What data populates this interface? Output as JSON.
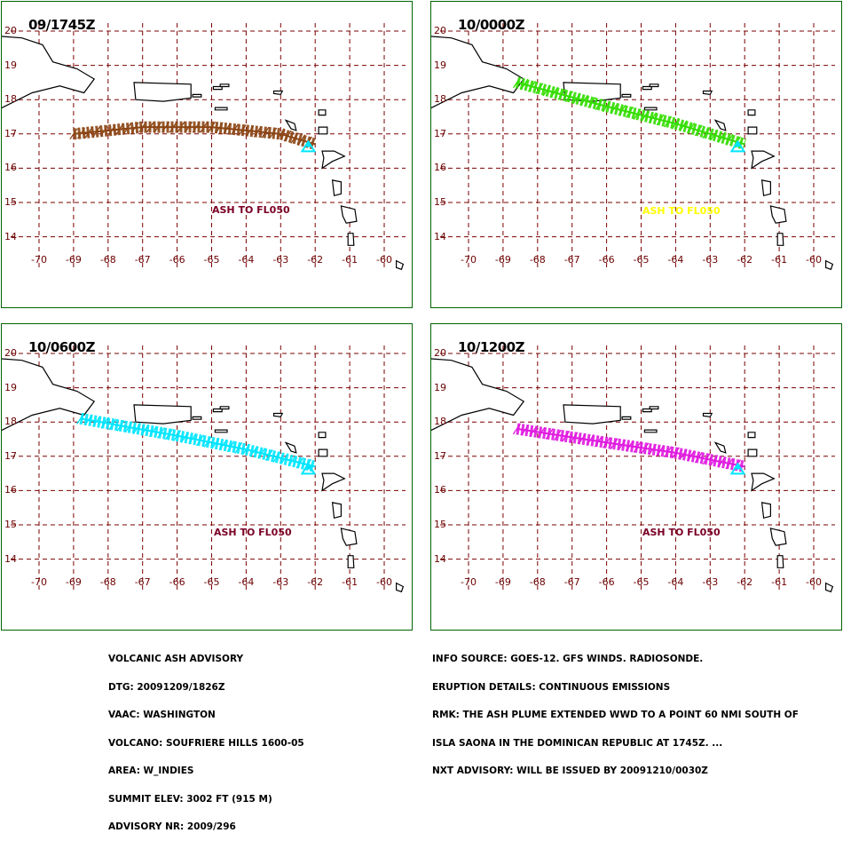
{
  "panels": [
    {
      "time": "09/1745Z",
      "ash_label": "ASH TO FL050",
      "ash_color": "#7a0026",
      "plume_color": "#8b4513",
      "plume_path": [
        [
          -69,
          17
        ],
        [
          -67,
          17.2
        ],
        [
          -65,
          17.2
        ],
        [
          -63,
          17.0
        ],
        [
          -62,
          16.7
        ]
      ]
    },
    {
      "time": "10/0000Z",
      "ash_label": "ASH TO FL050",
      "ash_color": "#ffff00",
      "plume_color": "#33dd00",
      "plume_path": [
        [
          -68.6,
          18.5
        ],
        [
          -66,
          17.8
        ],
        [
          -64,
          17.3
        ],
        [
          -62,
          16.7
        ]
      ]
    },
    {
      "time": "10/0600Z",
      "ash_label": "ASH TO FL050",
      "ash_color": "#7a0026",
      "plume_color": "#00e5ff",
      "plume_path": [
        [
          -68.8,
          18.1
        ],
        [
          -66,
          17.6
        ],
        [
          -64,
          17.2
        ],
        [
          -62,
          16.7
        ]
      ]
    },
    {
      "time": "10/1200Z",
      "ash_label": "ASH TO FL050",
      "ash_color": "#7a0026",
      "plume_color": "#e01ae0",
      "plume_path": [
        [
          -68.6,
          17.8
        ],
        [
          -66,
          17.4
        ],
        [
          -64,
          17.1
        ],
        [
          -62,
          16.7
        ]
      ]
    }
  ],
  "lat_labels": [
    "20",
    "19",
    "18",
    "17",
    "16",
    "15",
    "14"
  ],
  "lon_labels": [
    "-70",
    "-69",
    "-68",
    "-67",
    "-66",
    "-65",
    "-64",
    "-63",
    "-62",
    "-61",
    "-60"
  ],
  "grid_color": "#7a0000",
  "volcano": {
    "lon": -62.2,
    "lat": 16.7,
    "color": "#00e5ff"
  },
  "info_left": [
    "VOLCANIC ASH ADVISORY",
    "DTG: 20091209/1826Z",
    "VAAC: WASHINGTON",
    "VOLCANO: SOUFRIERE HILLS 1600-05",
    "AREA: W_INDIES",
    "SUMMIT ELEV: 3002 FT (915 M)",
    "ADVISORY NR: 2009/296"
  ],
  "info_right": [
    "INFO SOURCE: GOES-12. GFS WINDS. RADIOSONDE.",
    "ERUPTION DETAILS: CONTINUOUS EMISSIONS",
    "RMK: THE ASH PLUME EXTENDED WWD TO A POINT 60 NMI SOUTH OF",
    "ISLA SAONA IN THE DOMINICAN REPUBLIC AT 1745Z. ...",
    "NXT ADVISORY: WILL BE ISSUED BY 20091210/0030Z"
  ]
}
